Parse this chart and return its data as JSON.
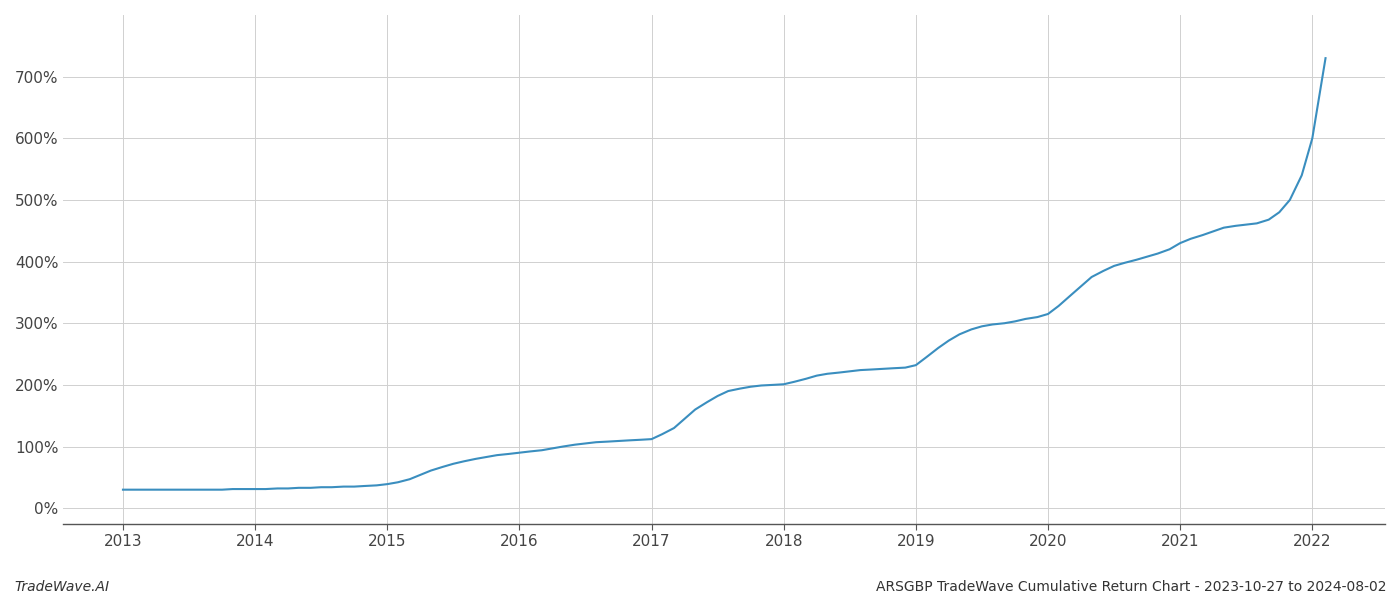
{
  "title": "ARSGBP TradeWave Cumulative Return Chart - 2023-10-27 to 2024-08-02",
  "watermark": "TradeWave.AI",
  "line_color": "#3a8ebf",
  "background_color": "#ffffff",
  "grid_color": "#d0d0d0",
  "x_ticks": [
    2013,
    2014,
    2015,
    2016,
    2017,
    2018,
    2019,
    2020,
    2021,
    2022
  ],
  "y_ticks": [
    0,
    100,
    200,
    300,
    400,
    500,
    600,
    700
  ],
  "ylim": [
    -25,
    800
  ],
  "xlim": [
    2012.55,
    2022.55
  ],
  "x_values": [
    2013.0,
    2013.08,
    2013.17,
    2013.25,
    2013.33,
    2013.42,
    2013.5,
    2013.58,
    2013.67,
    2013.75,
    2013.83,
    2013.92,
    2014.0,
    2014.08,
    2014.17,
    2014.25,
    2014.33,
    2014.42,
    2014.5,
    2014.58,
    2014.67,
    2014.75,
    2014.83,
    2014.92,
    2015.0,
    2015.08,
    2015.17,
    2015.25,
    2015.33,
    2015.42,
    2015.5,
    2015.58,
    2015.67,
    2015.75,
    2015.83,
    2015.92,
    2016.0,
    2016.08,
    2016.17,
    2016.25,
    2016.33,
    2016.42,
    2016.5,
    2016.58,
    2016.67,
    2016.75,
    2016.83,
    2016.92,
    2017.0,
    2017.08,
    2017.17,
    2017.25,
    2017.33,
    2017.42,
    2017.5,
    2017.58,
    2017.67,
    2017.75,
    2017.83,
    2017.92,
    2018.0,
    2018.08,
    2018.17,
    2018.25,
    2018.33,
    2018.42,
    2018.5,
    2018.58,
    2018.67,
    2018.75,
    2018.83,
    2018.92,
    2019.0,
    2019.08,
    2019.17,
    2019.25,
    2019.33,
    2019.42,
    2019.5,
    2019.58,
    2019.67,
    2019.75,
    2019.83,
    2019.92,
    2020.0,
    2020.08,
    2020.17,
    2020.25,
    2020.33,
    2020.42,
    2020.5,
    2020.58,
    2020.67,
    2020.75,
    2020.83,
    2020.92,
    2021.0,
    2021.08,
    2021.17,
    2021.25,
    2021.33,
    2021.42,
    2021.5,
    2021.58,
    2021.67,
    2021.75,
    2021.83,
    2021.92,
    2022.0,
    2022.1
  ],
  "y_values": [
    30,
    30,
    30,
    30,
    30,
    30,
    30,
    30,
    30,
    30,
    31,
    31,
    31,
    31,
    32,
    32,
    33,
    33,
    34,
    34,
    35,
    35,
    36,
    37,
    39,
    42,
    47,
    54,
    61,
    67,
    72,
    76,
    80,
    83,
    86,
    88,
    90,
    92,
    94,
    97,
    100,
    103,
    105,
    107,
    108,
    109,
    110,
    111,
    112,
    120,
    130,
    145,
    160,
    172,
    182,
    190,
    194,
    197,
    199,
    200,
    201,
    205,
    210,
    215,
    218,
    220,
    222,
    224,
    225,
    226,
    227,
    228,
    232,
    245,
    260,
    272,
    282,
    290,
    295,
    298,
    300,
    303,
    307,
    310,
    315,
    328,
    345,
    360,
    375,
    385,
    393,
    398,
    403,
    408,
    413,
    420,
    430,
    437,
    443,
    449,
    455,
    458,
    460,
    462,
    468,
    480,
    500,
    540,
    600,
    730
  ],
  "title_fontsize": 10,
  "watermark_fontsize": 10,
  "tick_fontsize": 11,
  "line_width": 1.5
}
